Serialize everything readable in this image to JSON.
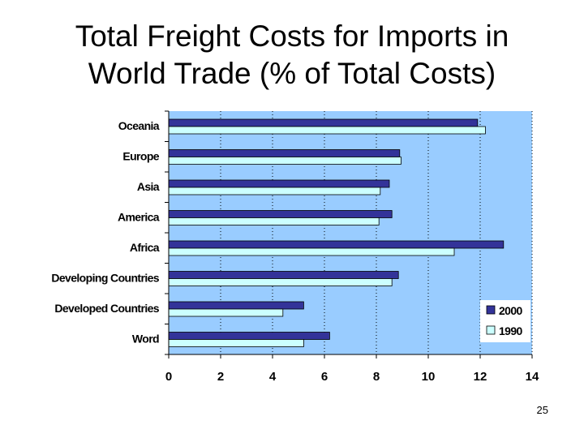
{
  "slide": {
    "title_line1": "Total Freight Costs for Imports in",
    "title_line2": "World Trade (% of Total Costs)",
    "page_number": "25"
  },
  "colors": {
    "plot_bg": "#99ccff",
    "series_2000": "#333399",
    "series_1990": "#ccffff",
    "bar_edge": "#000000"
  },
  "chart_data": {
    "type": "bar",
    "orientation": "horizontal",
    "title": "Total Freight Costs for Imports in World Trade (% of Total Costs)",
    "categories": [
      "Oceania",
      "Europe",
      "Asia",
      "America",
      "Africa",
      "Developing Countries",
      "Developed Countries",
      "Word"
    ],
    "series": [
      {
        "name": "2000",
        "values": [
          11.9,
          8.9,
          8.5,
          8.6,
          12.9,
          8.85,
          5.2,
          6.2
        ]
      },
      {
        "name": "1990",
        "values": [
          12.2,
          8.95,
          8.15,
          8.1,
          11.0,
          8.6,
          4.4,
          5.2
        ]
      }
    ],
    "x_ticks": [
      "0",
      "2",
      "4",
      "6",
      "8",
      "10",
      "12",
      "14"
    ],
    "xlim": [
      0,
      14
    ],
    "grid": "vertical dotted",
    "legend_position": "bottom-right"
  }
}
